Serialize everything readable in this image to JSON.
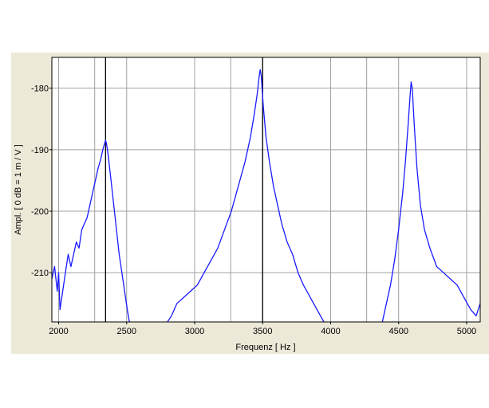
{
  "chart_data": {
    "type": "line",
    "title": "",
    "xlabel": "Frequenz [ Hz ]",
    "ylabel": "Ampl. [ 0 dB = 1 m / V ]",
    "xlim": [
      1950,
      5100
    ],
    "ylim": [
      -218,
      -175
    ],
    "xticks": [
      2000,
      2500,
      3000,
      3500,
      4000,
      4500,
      5000
    ],
    "xtick_labels": [
      "2000",
      "2500",
      "3000",
      "3500",
      "4000",
      "4500",
      "5000"
    ],
    "xgrid": [
      2000,
      2265,
      2500,
      3000,
      3265,
      3500,
      4000,
      4265,
      4500,
      5000
    ],
    "yticks": [
      -180,
      -190,
      -200,
      -210
    ],
    "ytick_labels": [
      "-180",
      "-190",
      "-200",
      "-210"
    ],
    "grid": true,
    "line_color": "#1a1aff",
    "markers": [
      2345,
      3500
    ],
    "series": [
      {
        "name": "",
        "points": [
          [
            1950,
            -211
          ],
          [
            1970,
            -209
          ],
          [
            1990,
            -213
          ],
          [
            2000,
            -210
          ],
          [
            2010,
            -216
          ],
          [
            2030,
            -213
          ],
          [
            2050,
            -210
          ],
          [
            2070,
            -207
          ],
          [
            2090,
            -209
          ],
          [
            2110,
            -207
          ],
          [
            2130,
            -205
          ],
          [
            2150,
            -206
          ],
          [
            2170,
            -203
          ],
          [
            2190,
            -202
          ],
          [
            2210,
            -201
          ],
          [
            2230,
            -199
          ],
          [
            2250,
            -197
          ],
          [
            2270,
            -195
          ],
          [
            2290,
            -193
          ],
          [
            2310,
            -191.5
          ],
          [
            2325,
            -190
          ],
          [
            2338,
            -189
          ],
          [
            2345,
            -188.5
          ],
          [
            2352,
            -189
          ],
          [
            2365,
            -191
          ],
          [
            2385,
            -195
          ],
          [
            2405,
            -199
          ],
          [
            2425,
            -203
          ],
          [
            2445,
            -207
          ],
          [
            2465,
            -210
          ],
          [
            2485,
            -213
          ],
          [
            2505,
            -216
          ],
          [
            2520,
            -218
          ]
        ]
      },
      {
        "name": "",
        "points": [
          [
            2800,
            -218
          ],
          [
            2830,
            -217
          ],
          [
            2870,
            -215
          ],
          [
            2920,
            -214
          ],
          [
            2970,
            -213
          ],
          [
            3020,
            -212
          ],
          [
            3070,
            -210
          ],
          [
            3120,
            -208
          ],
          [
            3170,
            -206
          ],
          [
            3220,
            -203
          ],
          [
            3270,
            -200
          ],
          [
            3320,
            -196
          ],
          [
            3370,
            -192
          ],
          [
            3410,
            -188
          ],
          [
            3440,
            -184
          ],
          [
            3460,
            -181
          ],
          [
            3475,
            -178
          ],
          [
            3482,
            -177
          ],
          [
            3490,
            -178
          ],
          [
            3505,
            -183
          ],
          [
            3525,
            -188
          ],
          [
            3550,
            -192
          ],
          [
            3580,
            -196
          ],
          [
            3610,
            -199
          ],
          [
            3640,
            -202
          ],
          [
            3680,
            -205
          ],
          [
            3720,
            -207
          ],
          [
            3760,
            -210
          ],
          [
            3800,
            -212
          ],
          [
            3850,
            -214
          ],
          [
            3900,
            -216
          ],
          [
            3950,
            -218
          ]
        ]
      },
      {
        "name": "",
        "points": [
          [
            4380,
            -218
          ],
          [
            4410,
            -215
          ],
          [
            4440,
            -212
          ],
          [
            4470,
            -208
          ],
          [
            4500,
            -203
          ],
          [
            4530,
            -197
          ],
          [
            4550,
            -192
          ],
          [
            4570,
            -186
          ],
          [
            4585,
            -181
          ],
          [
            4592,
            -179
          ],
          [
            4600,
            -180
          ],
          [
            4615,
            -186
          ],
          [
            4635,
            -193
          ],
          [
            4660,
            -199
          ],
          [
            4690,
            -203
          ],
          [
            4730,
            -206
          ],
          [
            4780,
            -209
          ],
          [
            4830,
            -210
          ],
          [
            4880,
            -211
          ],
          [
            4930,
            -212
          ],
          [
            4980,
            -214
          ],
          [
            5030,
            -216
          ],
          [
            5070,
            -217
          ],
          [
            5100,
            -215
          ]
        ]
      }
    ]
  }
}
